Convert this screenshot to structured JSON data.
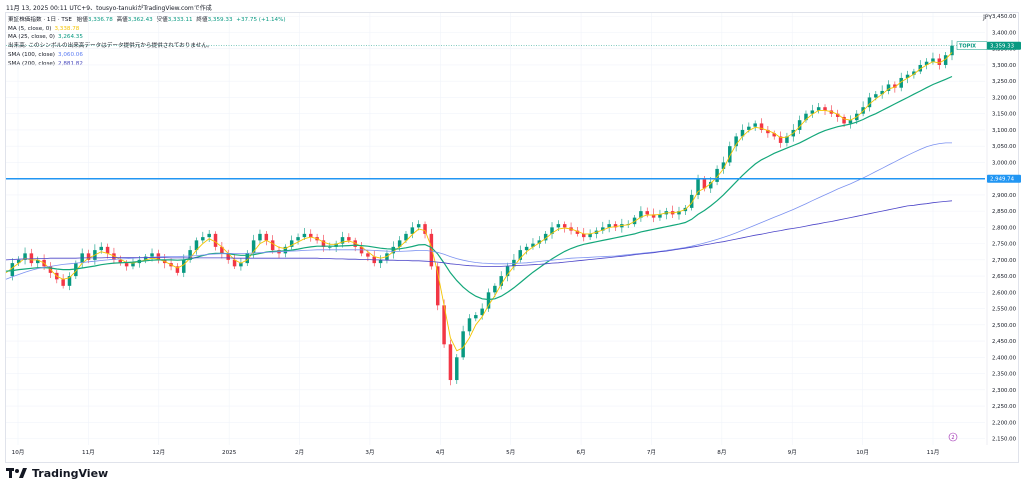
{
  "header": {
    "top_line": "11月 13, 2025 00:11 UTC+9、tousyo-tanukiがTradingView.comで作成"
  },
  "legend": {
    "title_row": {
      "name": "東証株価指数 · 1日 · TSE",
      "open_label": "始値",
      "open": "3,336.78",
      "high_label": "高値",
      "high": "3,362.43",
      "low_label": "安値",
      "low": "3,333.11",
      "close_label": "終値",
      "close": "3,359.33",
      "change": "+37.75 (+1.14%)"
    },
    "indicators": [
      {
        "label": "MA (5, close, 0)",
        "value": "3,338.78",
        "color": "#f5c400"
      },
      {
        "label": "MA (25, close, 0)",
        "value": "3,264.35",
        "color": "#089981"
      },
      {
        "label": "出来高: このシンボルの出来高データはデータ提供元から提供されておりません。",
        "value": "",
        "color": "#131722"
      },
      {
        "label": "SMA (100, close)",
        "value": "3,060.06",
        "color": "#5b7cf2"
      },
      {
        "label": "SMA (200, close)",
        "value": "2,881.82",
        "color": "#3f3fb8"
      }
    ]
  },
  "currency": "JPY",
  "brand": "TradingView",
  "colors": {
    "up": "#089981",
    "down": "#f23645",
    "ma5": "#f5c400",
    "ma25": "#13a77a",
    "sma100": "#7b91f0",
    "sma200": "#4b44c8",
    "hline": "#2196f3",
    "grid": "#f0f3fa"
  },
  "chart_data": {
    "type": "line",
    "title": "東証株価指数 · 1日 · TSE",
    "ylim": [
      2130,
      3460
    ],
    "y_ticks": [
      "2,150.00",
      "2,200.00",
      "2,250.00",
      "2,300.00",
      "2,350.00",
      "2,400.00",
      "2,450.00",
      "2,500.00",
      "2,550.00",
      "2,600.00",
      "2,650.00",
      "2,700.00",
      "2,750.00",
      "2,800.00",
      "2,850.00",
      "2,900.00",
      "2,950.00",
      "3,000.00",
      "3,050.00",
      "3,100.00",
      "3,150.00",
      "3,200.00",
      "3,250.00",
      "3,300.00",
      "3,350.00",
      "3,400.00",
      "3,450.00"
    ],
    "x_ticks": [
      "10月",
      "11月",
      "12月",
      "2025",
      "2月",
      "3月",
      "4月",
      "5月",
      "6月",
      "7月",
      "8月",
      "9月",
      "10月",
      "11月"
    ],
    "price_tag": {
      "label": "TOPIX",
      "value": "3,359.33"
    },
    "horizontal_line": {
      "value": 2949.74,
      "label": "2,949.74"
    },
    "event_marker": "2",
    "series": [
      {
        "name": "TOPIX",
        "values": [
          2650,
          2690,
          2700,
          2720,
          2690,
          2700,
          2680,
          2660,
          2640,
          2620,
          2650,
          2690,
          2720,
          2700,
          2730,
          2740,
          2720,
          2700,
          2690,
          2680,
          2690,
          2700,
          2710,
          2720,
          2700,
          2690,
          2680,
          2660,
          2700,
          2730,
          2760,
          2770,
          2780,
          2740,
          2720,
          2700,
          2680,
          2690,
          2720,
          2760,
          2780,
          2760,
          2730,
          2720,
          2740,
          2760,
          2770,
          2780,
          2770,
          2760,
          2740,
          2740,
          2750,
          2770,
          2760,
          2740,
          2720,
          2710,
          2690,
          2700,
          2720,
          2740,
          2760,
          2780,
          2800,
          2810,
          2780,
          2680,
          2560,
          2440,
          2330,
          2400,
          2480,
          2520,
          2530,
          2550,
          2600,
          2620,
          2650,
          2680,
          2700,
          2730,
          2740,
          2750,
          2760,
          2780,
          2800,
          2810,
          2800,
          2790,
          2780,
          2770,
          2780,
          2790,
          2800,
          2810,
          2800,
          2810,
          2810,
          2830,
          2850,
          2840,
          2830,
          2840,
          2850,
          2840,
          2850,
          2860,
          2900,
          2950,
          2920,
          2940,
          2980,
          3000,
          3050,
          3080,
          3100,
          3110,
          3120,
          3100,
          3090,
          3080,
          3060,
          3080,
          3100,
          3130,
          3150,
          3160,
          3170,
          3160,
          3150,
          3140,
          3120,
          3130,
          3150,
          3170,
          3200,
          3210,
          3220,
          3240,
          3230,
          3260,
          3270,
          3280,
          3300,
          3310,
          3320,
          3300,
          3330,
          3359.33
        ]
      },
      {
        "name": "MA (5, close, 0)",
        "values": [
          2660,
          2675,
          2690,
          2705,
          2700,
          2700,
          2690,
          2670,
          2650,
          2640,
          2645,
          2665,
          2690,
          2705,
          2715,
          2725,
          2720,
          2712,
          2702,
          2692,
          2690,
          2695,
          2700,
          2705,
          2702,
          2695,
          2685,
          2675,
          2685,
          2705,
          2730,
          2750,
          2765,
          2755,
          2740,
          2720,
          2700,
          2690,
          2700,
          2725,
          2750,
          2760,
          2750,
          2738,
          2735,
          2745,
          2755,
          2765,
          2770,
          2765,
          2755,
          2748,
          2748,
          2755,
          2758,
          2752,
          2740,
          2725,
          2710,
          2705,
          2710,
          2725,
          2740,
          2758,
          2778,
          2795,
          2790,
          2740,
          2660,
          2560,
          2460,
          2420,
          2430,
          2460,
          2500,
          2525,
          2560,
          2590,
          2625,
          2655,
          2680,
          2705,
          2725,
          2740,
          2752,
          2766,
          2782,
          2795,
          2798,
          2795,
          2788,
          2780,
          2780,
          2785,
          2792,
          2800,
          2802,
          2806,
          2808,
          2818,
          2832,
          2838,
          2838,
          2840,
          2845,
          2845,
          2848,
          2855,
          2875,
          2910,
          2920,
          2935,
          2955,
          2980,
          3020,
          3055,
          3080,
          3098,
          3108,
          3105,
          3098,
          3090,
          3076,
          3078,
          3090,
          3110,
          3132,
          3148,
          3160,
          3160,
          3156,
          3148,
          3134,
          3130,
          3140,
          3158,
          3180,
          3196,
          3210,
          3226,
          3232,
          3248,
          3260,
          3272,
          3288,
          3300,
          3310,
          3306,
          3318,
          3338.78
        ]
      },
      {
        "name": "MA (25, close, 0)",
        "values": [
          2665,
          2667,
          2670,
          2672,
          2674,
          2676,
          2676,
          2675,
          2672,
          2670,
          2670,
          2672,
          2675,
          2678,
          2681,
          2685,
          2688,
          2690,
          2691,
          2692,
          2693,
          2695,
          2697,
          2699,
          2700,
          2700,
          2700,
          2699,
          2700,
          2703,
          2708,
          2713,
          2718,
          2720,
          2720,
          2719,
          2716,
          2714,
          2714,
          2716,
          2720,
          2724,
          2726,
          2727,
          2728,
          2730,
          2733,
          2737,
          2740,
          2742,
          2742,
          2742,
          2742,
          2743,
          2744,
          2745,
          2744,
          2742,
          2739,
          2736,
          2734,
          2733,
          2734,
          2737,
          2741,
          2746,
          2747,
          2738,
          2718,
          2690,
          2660,
          2636,
          2616,
          2600,
          2588,
          2580,
          2578,
          2580,
          2588,
          2600,
          2614,
          2630,
          2646,
          2662,
          2676,
          2690,
          2703,
          2715,
          2726,
          2735,
          2742,
          2748,
          2752,
          2756,
          2760,
          2764,
          2768,
          2772,
          2776,
          2780,
          2786,
          2790,
          2794,
          2798,
          2802,
          2806,
          2810,
          2815,
          2825,
          2840,
          2852,
          2866,
          2882,
          2900,
          2920,
          2940,
          2960,
          2978,
          2995,
          3008,
          3018,
          3028,
          3036,
          3044,
          3052,
          3060,
          3070,
          3080,
          3090,
          3098,
          3104,
          3110,
          3114,
          3118,
          3124,
          3132,
          3142,
          3150,
          3160,
          3170,
          3180,
          3190,
          3200,
          3210,
          3220,
          3230,
          3240,
          3248,
          3256,
          3264.35
        ]
      },
      {
        "name": "SMA (100, close)",
        "values": [
          2640,
          2648,
          2655,
          2662,
          2668,
          2673,
          2677,
          2680,
          2683,
          2686,
          2688,
          2690,
          2692,
          2694,
          2696,
          2698,
          2700,
          2702,
          2703,
          2704,
          2705,
          2706,
          2707,
          2708,
          2709,
          2710,
          2710,
          2710,
          2711,
          2712,
          2713,
          2715,
          2717,
          2718,
          2719,
          2720,
          2720,
          2720,
          2720,
          2721,
          2722,
          2723,
          2724,
          2725,
          2726,
          2727,
          2728,
          2729,
          2730,
          2731,
          2731,
          2731,
          2731,
          2731,
          2731,
          2731,
          2731,
          2730,
          2729,
          2728,
          2727,
          2726,
          2726,
          2727,
          2728,
          2729,
          2729,
          2727,
          2723,
          2717,
          2710,
          2704,
          2699,
          2695,
          2692,
          2690,
          2689,
          2688,
          2688,
          2688,
          2689,
          2690,
          2691,
          2693,
          2695,
          2697,
          2699,
          2701,
          2703,
          2705,
          2706,
          2707,
          2708,
          2709,
          2710,
          2711,
          2712,
          2714,
          2716,
          2718,
          2720,
          2722,
          2724,
          2726,
          2729,
          2732,
          2735,
          2738,
          2742,
          2747,
          2752,
          2757,
          2763,
          2769,
          2776,
          2783,
          2791,
          2799,
          2807,
          2815,
          2823,
          2831,
          2839,
          2847,
          2855,
          2864,
          2873,
          2882,
          2891,
          2900,
          2909,
          2918,
          2926,
          2934,
          2943,
          2952,
          2962,
          2972,
          2982,
          2992,
          3002,
          3012,
          3022,
          3031,
          3040,
          3048,
          3054,
          3058,
          3060,
          3060.06
        ]
      },
      {
        "name": "SMA (200, close)",
        "values": [
          2700,
          2701,
          2702,
          2703,
          2703,
          2704,
          2704,
          2705,
          2705,
          2705,
          2705,
          2705,
          2706,
          2706,
          2706,
          2706,
          2707,
          2707,
          2707,
          2707,
          2707,
          2707,
          2707,
          2707,
          2707,
          2707,
          2706,
          2706,
          2706,
          2706,
          2706,
          2706,
          2706,
          2706,
          2706,
          2706,
          2705,
          2705,
          2705,
          2705,
          2705,
          2705,
          2705,
          2705,
          2705,
          2705,
          2705,
          2705,
          2705,
          2705,
          2704,
          2704,
          2703,
          2703,
          2702,
          2702,
          2701,
          2701,
          2700,
          2700,
          2699,
          2699,
          2698,
          2698,
          2697,
          2697,
          2696,
          2695,
          2693,
          2691,
          2688,
          2686,
          2684,
          2682,
          2681,
          2680,
          2680,
          2680,
          2680,
          2681,
          2682,
          2683,
          2684,
          2685,
          2686,
          2688,
          2690,
          2691,
          2693,
          2695,
          2697,
          2699,
          2701,
          2703,
          2705,
          2707,
          2709,
          2711,
          2713,
          2716,
          2718,
          2720,
          2722,
          2725,
          2727,
          2730,
          2733,
          2736,
          2739,
          2742,
          2746,
          2749,
          2753,
          2756,
          2760,
          2764,
          2768,
          2772,
          2776,
          2779,
          2783,
          2787,
          2790,
          2794,
          2797,
          2800,
          2804,
          2808,
          2811,
          2815,
          2818,
          2822,
          2826,
          2830,
          2834,
          2838,
          2842,
          2846,
          2850,
          2854,
          2858,
          2862,
          2866,
          2868,
          2871,
          2873,
          2876,
          2878,
          2880,
          2881.82
        ]
      }
    ]
  }
}
